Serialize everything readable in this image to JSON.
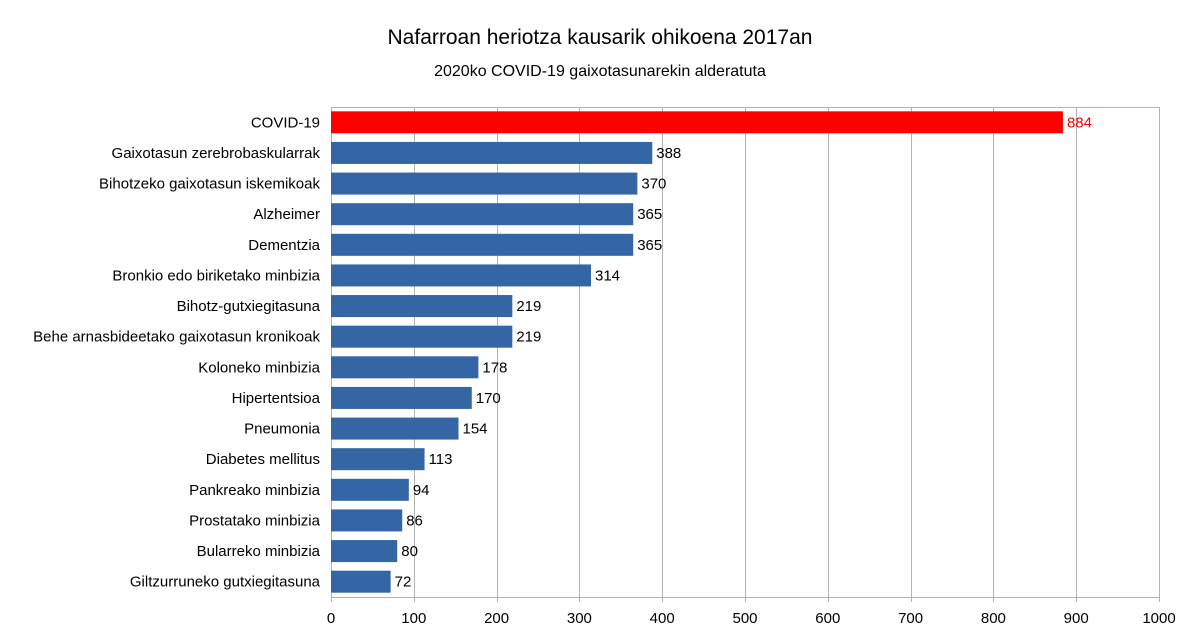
{
  "chart_data": {
    "type": "bar",
    "orientation": "horizontal",
    "title": "Nafarroan heriotza kausarik ohikoena 2017an",
    "subtitle": "2020ko COVID-19 gaixotasunarekin alderatuta",
    "categories": [
      "COVID-19",
      "Gaixotasun zerebrobaskularrak",
      "Bihotzeko gaixotasun iskemikoak",
      "Alzheimer",
      "Dementzia",
      "Bronkio edo biriketako minbizia",
      "Bihotz-gutxiegitasuna",
      "Behe arnasbideetako gaixotasun kronikoak",
      "Koloneko minbizia",
      "Hipertentsioa",
      "Pneumonia",
      "Diabetes mellitus",
      "Pankreako minbizia",
      "Prostatako minbizia",
      "Bularreko minbizia",
      "Giltzurruneko gutxiegitasuna"
    ],
    "values": [
      884,
      388,
      370,
      365,
      365,
      314,
      219,
      219,
      178,
      170,
      154,
      113,
      94,
      86,
      80,
      72
    ],
    "data_labels": [
      "884",
      "388",
      "370",
      "365",
      "365",
      "314",
      "219",
      "219",
      "178",
      "170",
      "154",
      "113",
      "94",
      "86",
      "80",
      "72"
    ],
    "highlight_index": 0,
    "xlim": [
      0,
      1000
    ],
    "xticks": [
      0,
      100,
      200,
      300,
      400,
      500,
      600,
      700,
      800,
      900,
      1000
    ],
    "xtick_labels": [
      "0",
      "100",
      "200",
      "300",
      "400",
      "500",
      "600",
      "700",
      "800",
      "900",
      "1000"
    ],
    "grid": true,
    "legend": "none",
    "colors": {
      "bar": "#3465a4",
      "highlight_bar": "#ff0000",
      "highlight_label": "#ff0000",
      "label": "#000000",
      "grid": "#b3b3b3"
    }
  }
}
